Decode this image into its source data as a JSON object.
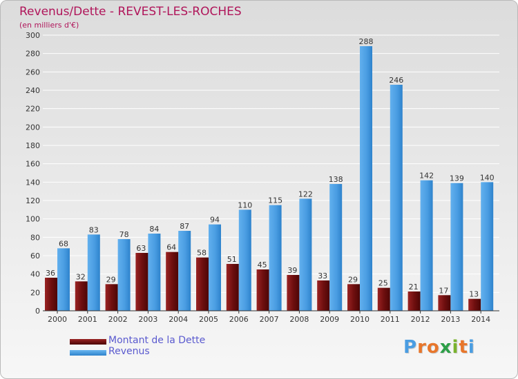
{
  "chart_data": {
    "type": "bar",
    "title": "Revenus/Dette - REVEST-LES-ROCHES",
    "subtitle": "(en milliers d'€)",
    "categories": [
      "2000",
      "2001",
      "2002",
      "2003",
      "2004",
      "2005",
      "2006",
      "2007",
      "2008",
      "2009",
      "2010",
      "2011",
      "2012",
      "2013",
      "2014"
    ],
    "series": [
      {
        "name": "Montant de la Dette",
        "values": [
          36,
          32,
          29,
          63,
          64,
          58,
          51,
          45,
          39,
          33,
          29,
          25,
          21,
          17,
          13
        ],
        "color": "#7a1616"
      },
      {
        "name": "Revenus",
        "values": [
          68,
          83,
          78,
          84,
          87,
          94,
          110,
          115,
          122,
          138,
          288,
          246,
          142,
          139,
          140
        ],
        "color": "#4ea1e4"
      }
    ],
    "yticks": [
      "0",
      "20",
      "40",
      "60",
      "80",
      "100",
      "120",
      "140",
      "160",
      "180",
      "200",
      "220",
      "240",
      "260",
      "280",
      "300"
    ],
    "ylim": [
      0,
      300
    ],
    "grid": true,
    "legend_position": "bottom-left",
    "xlabel": "",
    "ylabel": ""
  },
  "legend": {
    "dette_label": "Montant de la Dette",
    "revenus_label": "Revenus",
    "text_color": "#5a5acf"
  },
  "brand": {
    "text": "Proxiti"
  }
}
